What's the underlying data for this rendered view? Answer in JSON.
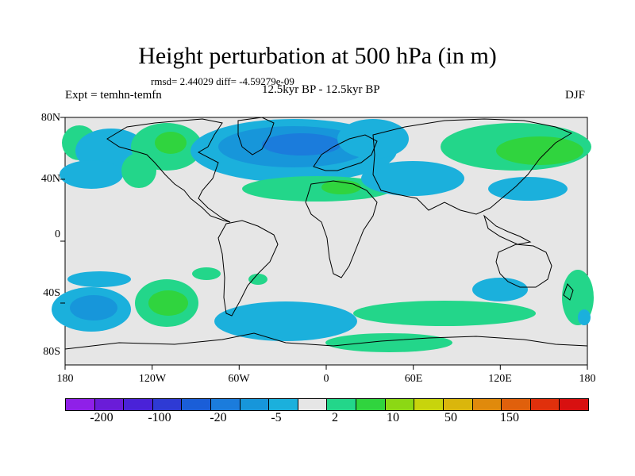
{
  "title": "Height perturbation at 500 hPa (in m)",
  "stats": "rmsd= 2.44029 diff= -4.59279e-09",
  "expt": "Expt = temhn-temfn",
  "period": "12.5kyr BP - 12.5kyr BP",
  "season": "DJF",
  "lat_labels": [
    "80N",
    "40N",
    "0",
    "40S",
    "80S"
  ],
  "lon_labels": [
    "180",
    "120W",
    "60W",
    "0",
    "60E",
    "120E",
    "180"
  ],
  "colorbar": {
    "colors": [
      "#8f20e8",
      "#6a1cd8",
      "#4a22d8",
      "#2e3ad4",
      "#1a5ed8",
      "#1b7cdc",
      "#1796da",
      "#1bb0dc",
      "#e6e6e6",
      "#23d68a",
      "#30d43e",
      "#8cd814",
      "#c8d40c",
      "#dab60c",
      "#e08a0c",
      "#e0600c",
      "#e0300c",
      "#d81010"
    ],
    "labels": [
      "-200",
      "-100",
      "-20",
      "-5",
      "2",
      "10",
      "50",
      "150"
    ]
  },
  "map_colors": {
    "background": "#e6e6e6",
    "light_blue": "#1bb0dc",
    "mid_blue": "#1796da",
    "dark_blue": "#1b7cdc",
    "light_green": "#23d68a",
    "green": "#30d43e"
  }
}
